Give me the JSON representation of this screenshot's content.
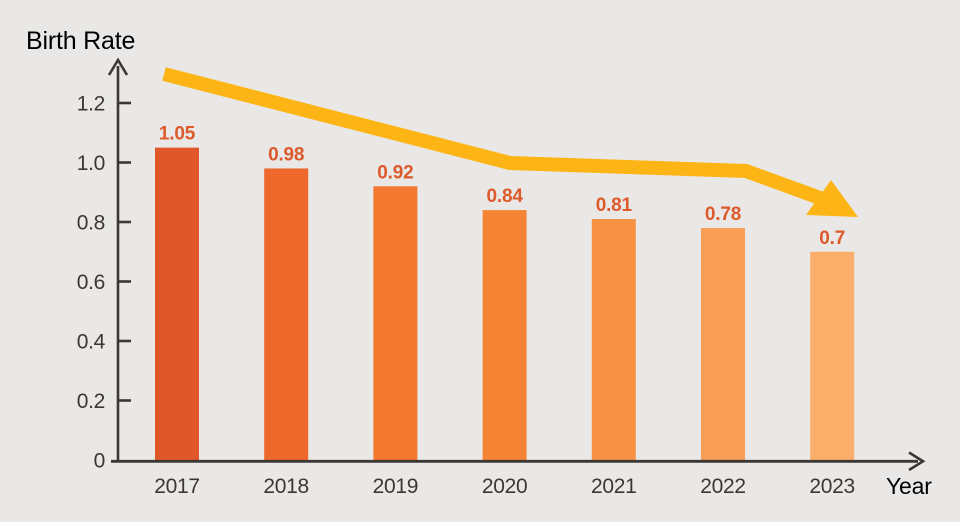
{
  "chart_data": {
    "type": "bar",
    "title": "Birth Rate",
    "xlabel": "Year",
    "categories": [
      "2017",
      "2018",
      "2019",
      "2020",
      "2021",
      "2022",
      "2023"
    ],
    "values": [
      1.05,
      0.98,
      0.92,
      0.84,
      0.81,
      0.78,
      0.7
    ],
    "value_labels": [
      "1.05",
      "0.98",
      "0.92",
      "0.84",
      "0.81",
      "0.78",
      "0.7"
    ],
    "y_ticks": [
      0,
      0.2,
      0.4,
      0.6,
      0.8,
      1.0,
      1.2
    ],
    "y_tick_labels": [
      "0",
      "0.2",
      "0.4",
      "0.6",
      "0.8",
      "1.0",
      "1.2"
    ],
    "ylim": [
      0,
      1.3
    ],
    "grid": false,
    "legend": "none",
    "annotations": [
      {
        "type": "trend-arrow",
        "direction": "declining",
        "from_category": "2017",
        "to_category": "2023"
      }
    ],
    "colors": {
      "background": "#E9E8E6",
      "axis": "#3B3734",
      "bars": [
        "#E0582A",
        "#EE682C",
        "#F3772F",
        "#F58535",
        "#F79143",
        "#F99E56",
        "#FAAE6A"
      ],
      "value_label": "#DC5A2C",
      "trend_arrow": "#FDB415"
    }
  }
}
